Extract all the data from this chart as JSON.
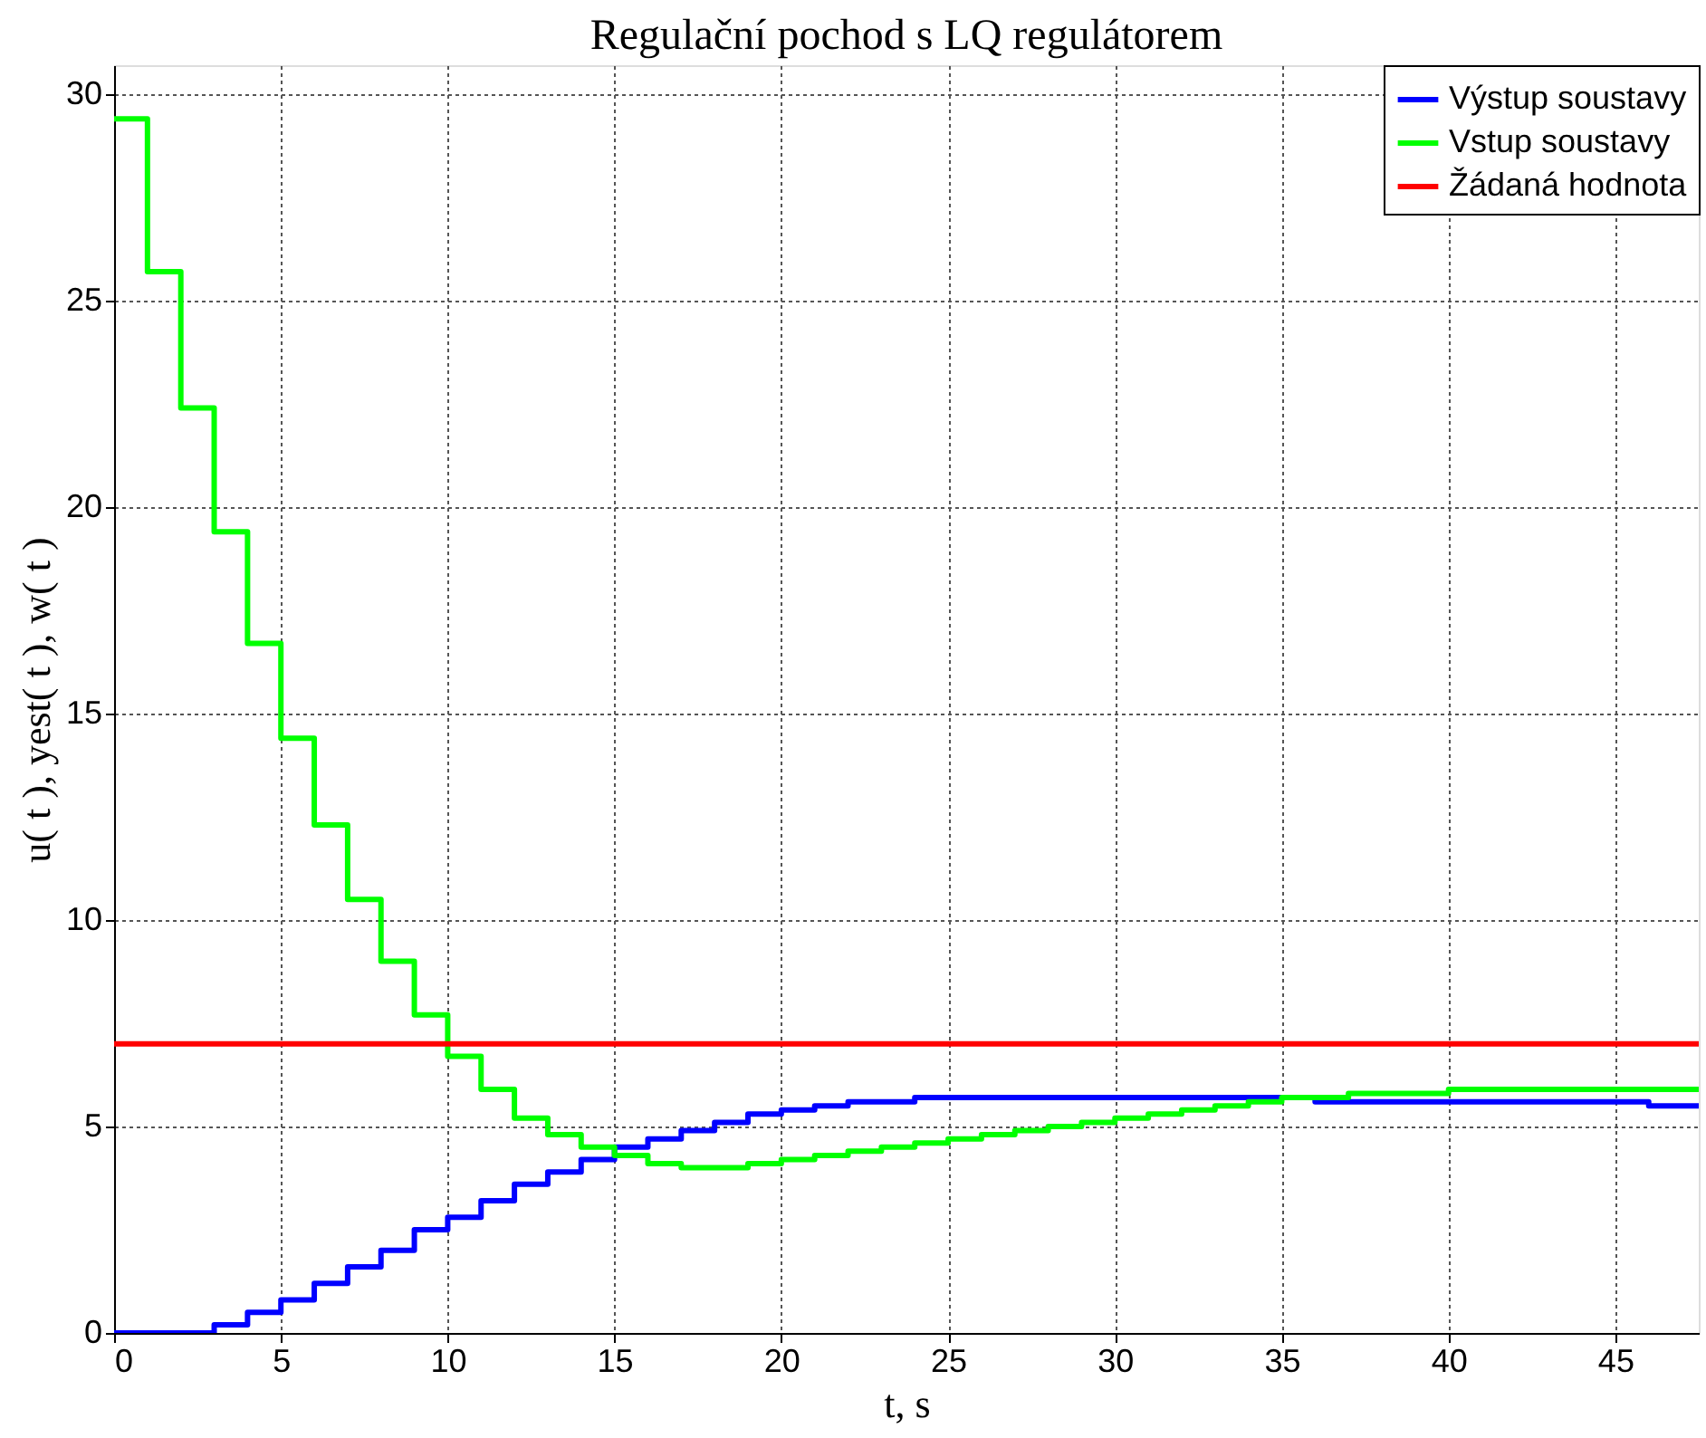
{
  "chart_data": {
    "type": "step",
    "title": "Regulační pochod s LQ regulátorem",
    "xlabel": "t, s",
    "ylabel": "u( t ), yest( t ), w( t )",
    "xlim": [
      0,
      47.5
    ],
    "ylim": [
      0,
      30.7
    ],
    "xticks": [
      0,
      5,
      10,
      15,
      20,
      25,
      30,
      35,
      40,
      45
    ],
    "yticks": [
      0,
      5,
      10,
      15,
      20,
      25,
      30
    ],
    "grid": true,
    "legend": "top right",
    "line_style": "solid",
    "marker": "none",
    "series": [
      {
        "name": "Výstup soustavy",
        "color": "#0000ff",
        "x": [
          0,
          1,
          2,
          3,
          4,
          5,
          6,
          7,
          8,
          9,
          10,
          11,
          12,
          13,
          14,
          15,
          16,
          17,
          18,
          19,
          20,
          21,
          22,
          23,
          24,
          25,
          26,
          27,
          28,
          29,
          30,
          31,
          32,
          33,
          34,
          35,
          36,
          37,
          38,
          39,
          40,
          41,
          42,
          43,
          44,
          45,
          46,
          47,
          47.5
        ],
        "values": [
          0,
          0,
          0,
          0.2,
          0.5,
          0.8,
          1.2,
          1.6,
          2.0,
          2.5,
          2.8,
          3.2,
          3.6,
          3.9,
          4.2,
          4.5,
          4.7,
          4.9,
          5.1,
          5.3,
          5.4,
          5.5,
          5.6,
          5.6,
          5.7,
          5.7,
          5.7,
          5.7,
          5.7,
          5.7,
          5.7,
          5.7,
          5.7,
          5.7,
          5.7,
          5.7,
          5.6,
          5.6,
          5.6,
          5.6,
          5.6,
          5.6,
          5.6,
          5.6,
          5.6,
          5.6,
          5.5,
          5.5,
          5.5
        ]
      },
      {
        "name": "Vstup soustavy",
        "color": "#00ff00",
        "x": [
          0,
          1,
          2,
          3,
          4,
          5,
          6,
          7,
          8,
          9,
          10,
          11,
          12,
          13,
          14,
          15,
          16,
          17,
          18,
          19,
          20,
          21,
          22,
          23,
          24,
          25,
          26,
          27,
          28,
          29,
          30,
          31,
          32,
          33,
          34,
          35,
          36,
          37,
          38,
          39,
          40,
          41,
          42,
          43,
          44,
          45,
          46,
          47,
          47.5
        ],
        "values": [
          29.4,
          25.7,
          22.4,
          19.4,
          16.7,
          14.4,
          12.3,
          10.5,
          9.0,
          7.7,
          6.7,
          5.9,
          5.2,
          4.8,
          4.5,
          4.3,
          4.1,
          4.0,
          4.0,
          4.1,
          4.2,
          4.3,
          4.4,
          4.5,
          4.6,
          4.7,
          4.8,
          4.9,
          5.0,
          5.1,
          5.2,
          5.3,
          5.4,
          5.5,
          5.6,
          5.7,
          5.7,
          5.8,
          5.8,
          5.8,
          5.9,
          5.9,
          5.9,
          5.9,
          5.9,
          5.9,
          5.9,
          5.9,
          5.9
        ]
      },
      {
        "name": "Žádaná hodnota",
        "color": "#ff0000",
        "type": "line",
        "x": [
          0,
          47.5
        ],
        "values": [
          7,
          7
        ]
      }
    ]
  }
}
